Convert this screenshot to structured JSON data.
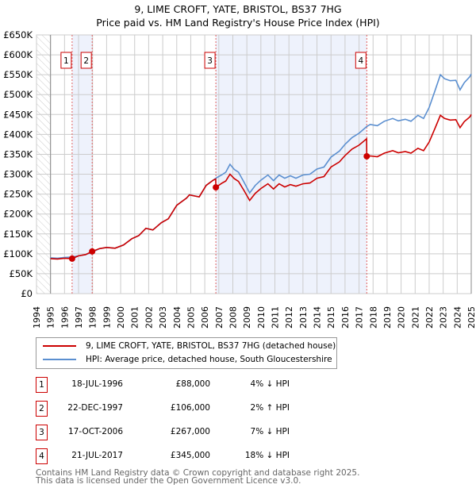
{
  "title_line1": "9, LIME CROFT, YATE, BRISTOL, BS37 7HG",
  "title_line2": "Price paid vs. HM Land Registry's House Price Index (HPI)",
  "chart_data": {
    "type": "line",
    "title": "9, LIME CROFT, YATE, BRISTOL, BS37 7HG — Price paid vs. HM Land Registry's House Price Index (HPI)",
    "xlim": [
      1994,
      2025
    ],
    "ylim": [
      0,
      650000
    ],
    "x_ticks": [
      "1994",
      "1995",
      "1996",
      "1997",
      "1998",
      "1999",
      "2000",
      "2001",
      "2002",
      "2003",
      "2004",
      "2005",
      "2006",
      "2007",
      "2008",
      "2009",
      "2010",
      "2011",
      "2012",
      "2013",
      "2014",
      "2015",
      "2016",
      "2017",
      "2018",
      "2019",
      "2020",
      "2021",
      "2022",
      "2023",
      "2024",
      "2025"
    ],
    "y_ticks": [
      {
        "v": 0,
        "label": "£0"
      },
      {
        "v": 50000,
        "label": "£50K"
      },
      {
        "v": 100000,
        "label": "£100K"
      },
      {
        "v": 150000,
        "label": "£150K"
      },
      {
        "v": 200000,
        "label": "£200K"
      },
      {
        "v": 250000,
        "label": "£250K"
      },
      {
        "v": 300000,
        "label": "£300K"
      },
      {
        "v": 350000,
        "label": "£350K"
      },
      {
        "v": 400000,
        "label": "£400K"
      },
      {
        "v": 450000,
        "label": "£450K"
      },
      {
        "v": 500000,
        "label": "£500K"
      },
      {
        "v": 550000,
        "label": "£550K"
      },
      {
        "v": 600000,
        "label": "£600K"
      },
      {
        "v": 650000,
        "label": "£650K"
      }
    ],
    "grid": true,
    "no_data_before": 1995,
    "colors": {
      "property": "#cc0000",
      "hpi": "#5b8fd0",
      "band": "#eef2fc",
      "grid": "#cccccc"
    },
    "series": [
      {
        "name": "9, LIME CROFT, YATE, BRISTOL, BS37 7HG (detached house)",
        "key": "property",
        "unit": "£K",
        "points": [
          [
            1995,
            88
          ],
          [
            1995.5,
            87
          ],
          [
            1996,
            89
          ],
          [
            1996.54,
            88
          ],
          [
            1997,
            95
          ],
          [
            1997.5,
            98
          ],
          [
            1997.97,
            106
          ],
          [
            1998.5,
            113
          ],
          [
            1999,
            116
          ],
          [
            1999.6,
            114
          ],
          [
            2000.2,
            122
          ],
          [
            2000.8,
            138
          ],
          [
            2001.3,
            146
          ],
          [
            2001.8,
            164
          ],
          [
            2002.3,
            160
          ],
          [
            2002.9,
            178
          ],
          [
            2003.4,
            188
          ],
          [
            2004,
            222
          ],
          [
            2004.7,
            240
          ],
          [
            2004.9,
            248
          ],
          [
            2005.6,
            243
          ],
          [
            2006.1,
            272
          ],
          [
            2006.6,
            285
          ],
          [
            2006.78,
            288
          ],
          [
            2006.79,
            267
          ],
          [
            2007.2,
            277
          ],
          [
            2007.5,
            283
          ],
          [
            2007.8,
            300
          ],
          [
            2008.1,
            289
          ],
          [
            2008.4,
            282
          ],
          [
            2008.8,
            259
          ],
          [
            2009.2,
            234
          ],
          [
            2009.6,
            252
          ],
          [
            2010,
            264
          ],
          [
            2010.5,
            276
          ],
          [
            2010.9,
            263
          ],
          [
            2011.3,
            276
          ],
          [
            2011.7,
            268
          ],
          [
            2012.1,
            274
          ],
          [
            2012.5,
            270
          ],
          [
            2013,
            276
          ],
          [
            2013.5,
            278
          ],
          [
            2014,
            290
          ],
          [
            2014.5,
            294
          ],
          [
            2015,
            318
          ],
          [
            2015.6,
            331
          ],
          [
            2016,
            347
          ],
          [
            2016.5,
            363
          ],
          [
            2017,
            373
          ],
          [
            2017.54,
            389
          ],
          [
            2017.55,
            345
          ],
          [
            2017.8,
            346
          ],
          [
            2018.3,
            344
          ],
          [
            2018.8,
            353
          ],
          [
            2019.4,
            359
          ],
          [
            2019.8,
            354
          ],
          [
            2020.3,
            357
          ],
          [
            2020.7,
            353
          ],
          [
            2021.2,
            365
          ],
          [
            2021.6,
            359
          ],
          [
            2022,
            381
          ],
          [
            2022.4,
            414
          ],
          [
            2022.8,
            448
          ],
          [
            2023.1,
            440
          ],
          [
            2023.5,
            436
          ],
          [
            2023.9,
            437
          ],
          [
            2024.2,
            417
          ],
          [
            2024.5,
            432
          ],
          [
            2024.9,
            444
          ],
          [
            2025,
            450
          ]
        ]
      },
      {
        "name": "HPI: Average price, detached house, South Gloucestershire",
        "key": "hpi",
        "unit": "£K",
        "points": [
          [
            1995,
            90
          ],
          [
            1995.5,
            89
          ],
          [
            1996,
            91
          ],
          [
            1996.54,
            92
          ],
          [
            1997,
            95
          ],
          [
            1997.5,
            98
          ],
          [
            1997.97,
            104
          ],
          [
            1998.5,
            113
          ],
          [
            1999,
            116
          ],
          [
            1999.6,
            114
          ],
          [
            2000.2,
            122
          ],
          [
            2000.8,
            138
          ],
          [
            2001.3,
            146
          ],
          [
            2001.8,
            164
          ],
          [
            2002.3,
            160
          ],
          [
            2002.9,
            178
          ],
          [
            2003.4,
            188
          ],
          [
            2004,
            222
          ],
          [
            2004.7,
            240
          ],
          [
            2004.9,
            248
          ],
          [
            2005.6,
            243
          ],
          [
            2006.1,
            272
          ],
          [
            2006.6,
            285
          ],
          [
            2006.79,
            290
          ],
          [
            2007.2,
            298
          ],
          [
            2007.5,
            305
          ],
          [
            2007.8,
            325
          ],
          [
            2008.1,
            312
          ],
          [
            2008.4,
            305
          ],
          [
            2008.8,
            280
          ],
          [
            2009.2,
            253
          ],
          [
            2009.6,
            272
          ],
          [
            2010,
            285
          ],
          [
            2010.5,
            298
          ],
          [
            2010.9,
            284
          ],
          [
            2011.3,
            298
          ],
          [
            2011.7,
            290
          ],
          [
            2012.1,
            296
          ],
          [
            2012.5,
            290
          ],
          [
            2013,
            298
          ],
          [
            2013.5,
            300
          ],
          [
            2014,
            313
          ],
          [
            2014.5,
            318
          ],
          [
            2015,
            343
          ],
          [
            2015.6,
            358
          ],
          [
            2016,
            375
          ],
          [
            2016.5,
            392
          ],
          [
            2017,
            403
          ],
          [
            2017.55,
            420
          ],
          [
            2017.8,
            425
          ],
          [
            2018.3,
            422
          ],
          [
            2018.8,
            433
          ],
          [
            2019.4,
            440
          ],
          [
            2019.8,
            434
          ],
          [
            2020.3,
            438
          ],
          [
            2020.7,
            433
          ],
          [
            2021.2,
            448
          ],
          [
            2021.6,
            440
          ],
          [
            2022,
            468
          ],
          [
            2022.4,
            508
          ],
          [
            2022.8,
            550
          ],
          [
            2023.1,
            540
          ],
          [
            2023.5,
            535
          ],
          [
            2023.9,
            536
          ],
          [
            2024.2,
            512
          ],
          [
            2024.5,
            530
          ],
          [
            2024.9,
            545
          ],
          [
            2025,
            552
          ]
        ]
      }
    ],
    "sales": [
      {
        "n": "1",
        "x": 1996.54,
        "price": 88000
      },
      {
        "n": "2",
        "x": 1997.97,
        "price": 106000
      },
      {
        "n": "3",
        "x": 2006.79,
        "price": 267000
      },
      {
        "n": "4",
        "x": 2017.55,
        "price": 345000
      }
    ]
  },
  "legend": {
    "property": "9, LIME CROFT, YATE, BRISTOL, BS37 7HG (detached house)",
    "hpi": "HPI: Average price, detached house, South Gloucestershire"
  },
  "transactions": [
    {
      "n": "1",
      "date": "18-JUL-1996",
      "price": "£88,000",
      "hpi": "4% ↓ HPI"
    },
    {
      "n": "2",
      "date": "22-DEC-1997",
      "price": "£106,000",
      "hpi": "2% ↑ HPI"
    },
    {
      "n": "3",
      "date": "17-OCT-2006",
      "price": "£267,000",
      "hpi": "7% ↓ HPI"
    },
    {
      "n": "4",
      "date": "21-JUL-2017",
      "price": "£345,000",
      "hpi": "18% ↓ HPI"
    }
  ],
  "footer": {
    "line1": "Contains HM Land Registry data © Crown copyright and database right 2025.",
    "line2": "This data is licensed under the Open Government Licence v3.0."
  }
}
